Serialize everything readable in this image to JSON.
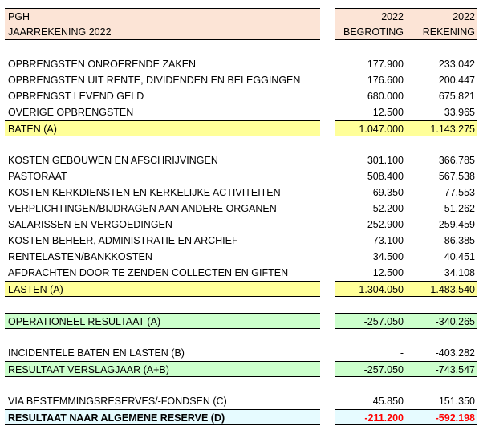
{
  "header": {
    "title": "PGH",
    "subtitle": "JAARREKENING 2022",
    "col1_year": "2022",
    "col1_label": "BEGROTING",
    "col2_year": "2022",
    "col2_label": "REKENING"
  },
  "rows": [
    {
      "label": "OPBRENGSTEN ONROERENDE ZAKEN",
      "begroting": "177.900",
      "rekening": "233.042",
      "style": "plain"
    },
    {
      "label": "OPBRENGSTEN UIT RENTE, DIVIDENDEN EN BELEGGINGEN",
      "begroting": "176.600",
      "rekening": "200.447",
      "style": "plain"
    },
    {
      "label": "OPBRENGST LEVEND GELD",
      "begroting": "680.000",
      "rekening": "675.821",
      "style": "plain"
    },
    {
      "label": "OVERIGE OPBRENGSTEN",
      "begroting": "12.500",
      "rekening": "33.965",
      "style": "plain"
    },
    {
      "label": "BATEN (A)",
      "begroting": "1.047.000",
      "rekening": "1.143.275",
      "style": "yellow"
    },
    {
      "blank": true
    },
    {
      "label": "KOSTEN GEBOUWEN EN AFSCHRIJVINGEN",
      "begroting": "301.100",
      "rekening": "366.785",
      "style": "plain"
    },
    {
      "label": "PASTORAAT",
      "begroting": "508.400",
      "rekening": "567.538",
      "style": "plain"
    },
    {
      "label": "KOSTEN KERKDIENSTEN EN KERKELIJKE ACTIVITEITEN",
      "begroting": "69.350",
      "rekening": "77.553",
      "style": "plain"
    },
    {
      "label": "VERPLICHTINGEN/BIJDRAGEN AAN ANDERE ORGANEN",
      "begroting": "52.200",
      "rekening": "51.262",
      "style": "plain"
    },
    {
      "label": "SALARISSEN EN VERGOEDINGEN",
      "begroting": "252.900",
      "rekening": "259.459",
      "style": "plain"
    },
    {
      "label": "KOSTEN BEHEER, ADMINISTRATIE EN ARCHIEF",
      "begroting": "73.100",
      "rekening": "86.385",
      "style": "plain"
    },
    {
      "label": "RENTELASTEN/BANKKOSTEN",
      "begroting": "34.500",
      "rekening": "40.451",
      "style": "plain"
    },
    {
      "label": "AFDRACHTEN DOOR TE ZENDEN COLLECTEN EN GIFTEN",
      "begroting": "12.500",
      "rekening": "34.108",
      "style": "plain"
    },
    {
      "label": "LASTEN (A)",
      "begroting": "1.304.050",
      "rekening": "1.483.540",
      "style": "yellow"
    },
    {
      "blank": true
    },
    {
      "label": "OPERATIONEEL RESULTAAT (A)",
      "begroting": "-257.050",
      "rekening": "-340.265",
      "style": "green"
    },
    {
      "blank": true
    },
    {
      "label": "INCIDENTELE BATEN EN LASTEN (B)",
      "begroting": "-",
      "rekening": "-403.282",
      "style": "plain"
    },
    {
      "label": "RESULTAAT VERSLAGJAAR (A+B)",
      "begroting": "-257.050",
      "rekening": "-743.547",
      "style": "green"
    },
    {
      "blank": true
    },
    {
      "label": "VIA BESTEMMINGSRESERVES/-FONDSEN (C)",
      "begroting": "45.850",
      "rekening": "151.350",
      "style": "plain"
    },
    {
      "label": "RESULTAAT NAAR ALGEMENE RESERVE (D)",
      "begroting": "-211.200",
      "rekening": "-592.198",
      "style": "final"
    }
  ]
}
